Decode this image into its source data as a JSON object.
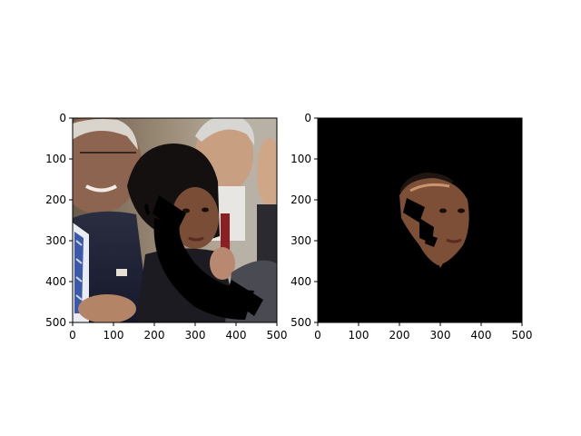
{
  "figure": {
    "panels": [
      {
        "name": "original-photo-with-mask",
        "x_ticks": [
          "0",
          "100",
          "200",
          "300",
          "400",
          "500"
        ],
        "y_ticks": [
          "0",
          "100",
          "200",
          "300",
          "400",
          "500"
        ],
        "content": "photograph of people in a crowd with a black curved occlusion mask over the central face"
      },
      {
        "name": "segmented-face",
        "x_ticks": [
          "0",
          "100",
          "200",
          "300",
          "400",
          "500"
        ],
        "y_ticks": [
          "0",
          "100",
          "200",
          "300",
          "400",
          "500"
        ],
        "content": "black background with only the segmented face region visible"
      }
    ],
    "colors": {
      "background_black": "#000000",
      "skin": "#b07a55",
      "suit_navy": "#1e2233",
      "hair_dark": "#141010"
    }
  }
}
